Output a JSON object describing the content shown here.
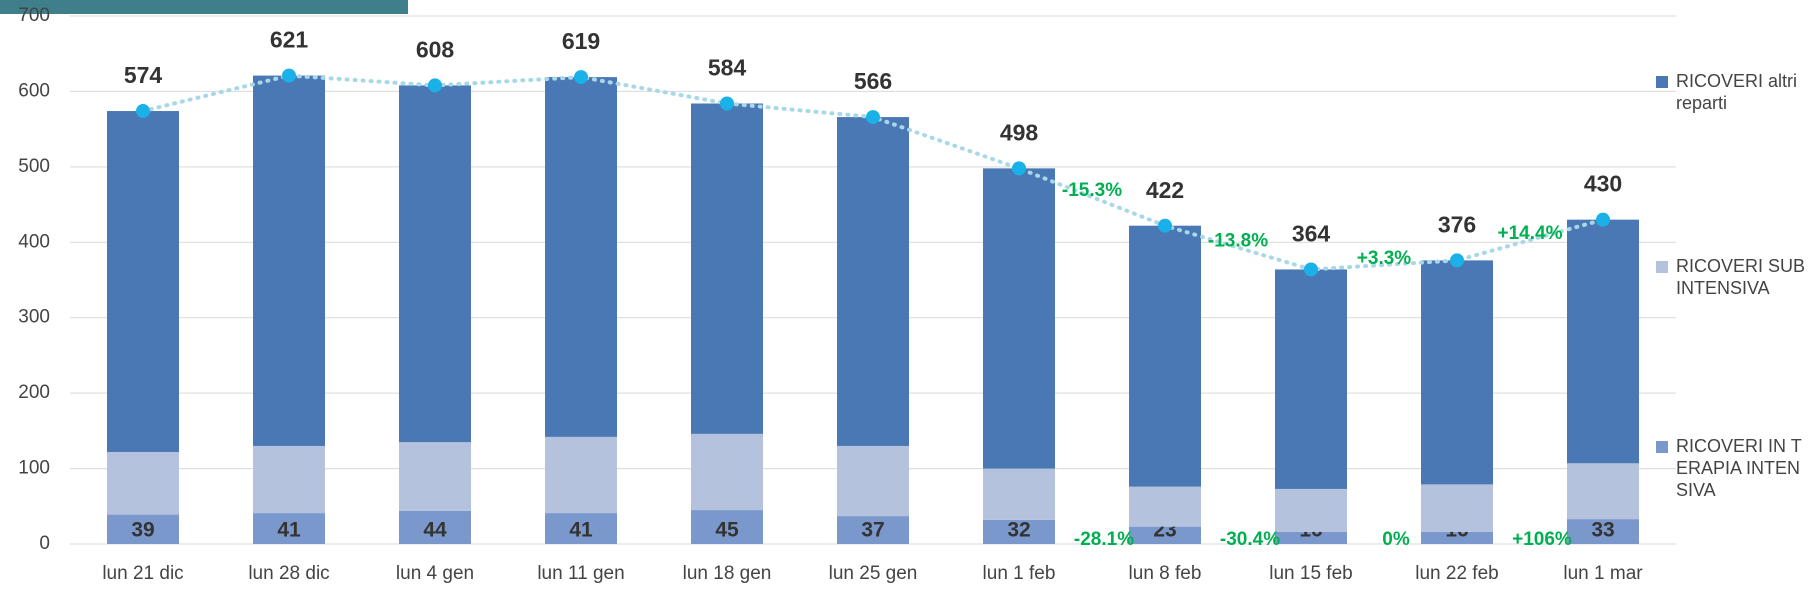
{
  "chart_data": {
    "type": "bar",
    "stacked": true,
    "categories": [
      "lun 21 dic",
      "lun 28 dic",
      "lun 4 gen",
      "lun 11 gen",
      "lun 18 gen",
      "lun 25 gen",
      "lun 1 feb",
      "lun 8 feb",
      "lun 15 feb",
      "lun 22 feb",
      "lun 1 mar"
    ],
    "series": [
      {
        "name": "RICOVERI IN TERAPIA INTENSIVA",
        "color": "#7b98cc",
        "values": [
          39,
          41,
          44,
          41,
          45,
          37,
          32,
          23,
          16,
          16,
          33
        ],
        "show_labels": true
      },
      {
        "name": "RICOVERI SUBINTENSIVA",
        "color": "#b4c2de",
        "values": [
          83,
          89,
          91,
          101,
          101,
          93,
          68,
          53,
          57,
          63,
          74
        ]
      },
      {
        "name": "RICOVERI altri reparti",
        "color": "#4a78b4",
        "values": [
          452,
          491,
          473,
          477,
          438,
          436,
          398,
          346,
          291,
          297,
          323
        ]
      }
    ],
    "totals": {
      "color": "#1ab0e8",
      "line_color": "#a8d8e8",
      "values": [
        574,
        621,
        608,
        619,
        584,
        566,
        498,
        422,
        364,
        376,
        430
      ]
    },
    "total_change_labels": [
      null,
      null,
      null,
      null,
      null,
      null,
      null,
      "-15.3%",
      "-13.8%",
      "+3.3%",
      "+14.4%"
    ],
    "intensive_change_labels": [
      null,
      null,
      null,
      null,
      null,
      null,
      null,
      "-28.1%",
      "-30.4%",
      "0%",
      "+106%"
    ],
    "change_color": "#00b050",
    "ylim": [
      0,
      700
    ],
    "yticks": [
      0,
      100,
      200,
      300,
      400,
      500,
      600,
      700
    ],
    "grid": true
  }
}
